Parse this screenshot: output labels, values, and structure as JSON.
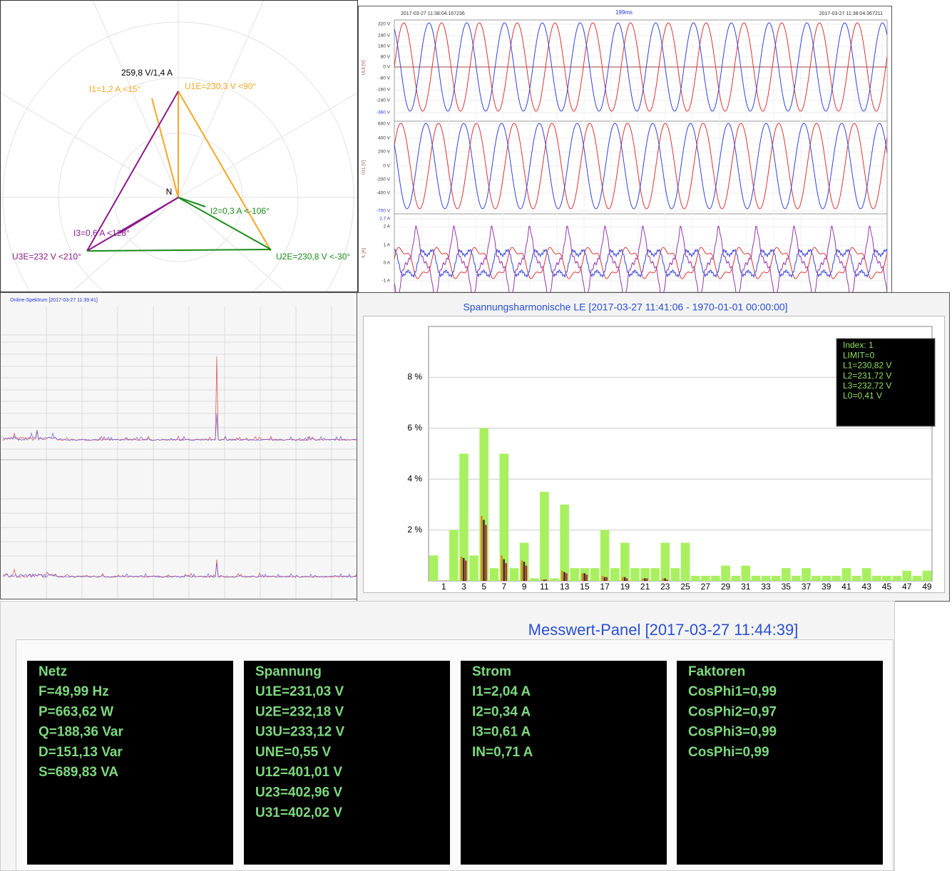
{
  "phasor": {
    "labels": [
      "259,8 V/1,4 A",
      "I1=1,2 A  <15°",
      "U1E=230,3 V <90°",
      "N",
      "I2=0,3 A  <-106°",
      "I3=0,6 A  <128°",
      "U3E=232 V <210°",
      "U2E=230,8 V <-30°"
    ]
  },
  "waveform": {
    "start": "2017-03-27 11:38:04.167236",
    "duration": "199ms",
    "end": "2017-03-27 11:38:04.367211",
    "axes": [
      {
        "label": "ULE [V]",
        "ticks": [
          "320 V",
          "240 V",
          "160 V",
          "80 V",
          "0 V",
          "-80 V",
          "-160 V",
          "-240 V",
          "-360 V"
        ]
      },
      {
        "label": "ULL [V]",
        "ticks": [
          "600 V",
          "400 V",
          "200 V",
          "0 V",
          "-200 V",
          "-400 V",
          "-700 V"
        ]
      },
      {
        "label": "IL [A]",
        "ticks": [
          "2,7 A",
          "2 A",
          "1 A",
          "0 A",
          "-1 A"
        ]
      }
    ]
  },
  "spectrum": {
    "title": "Online-Spektrum [2017-03-27 11:39:41]"
  },
  "chart_data": {
    "type": "bar",
    "title": "Spannungsharmonische LE [2017-03-27 11:41:06 - 1970-01-01 00:00:00]",
    "categories": [
      null,
      "1",
      null,
      "3",
      null,
      "5",
      null,
      "7",
      null,
      "9",
      null,
      "11",
      null,
      "13",
      null,
      "15",
      null,
      "17",
      null,
      "19",
      null,
      "21",
      null,
      "23",
      null,
      "25",
      null,
      "27",
      null,
      "29",
      null,
      "31",
      null,
      "33",
      null,
      "35",
      null,
      "37",
      null,
      "39",
      null,
      "41",
      null,
      "43",
      null,
      "45",
      null,
      "47",
      null,
      "49"
    ],
    "series": [
      {
        "color": "#a8f060",
        "values": [
          1.0,
          0,
          2.0,
          5.0,
          1.0,
          6.0,
          0.5,
          5.0,
          0.5,
          1.5,
          0.1,
          3.5,
          0.1,
          3.0,
          0.5,
          0.5,
          0.5,
          2.0,
          0.5,
          1.5,
          0.5,
          0.5,
          0.5,
          1.5,
          0.5,
          1.5,
          0.2,
          0.2,
          0.2,
          0.6,
          0.2,
          0.6,
          0.2,
          0.2,
          0.2,
          0.5,
          0.2,
          0.5,
          0.2,
          0.2,
          0.2,
          0.5,
          0.2,
          0.5,
          0.2,
          0.2,
          0.2,
          0.4,
          0.2,
          0.4
        ]
      },
      {
        "color": "#e08a10",
        "values": [
          0,
          0,
          0,
          0.95,
          0,
          2.55,
          0,
          1.0,
          0,
          0.8,
          0,
          0.05,
          0,
          0.4,
          0,
          0.3,
          0,
          0.2,
          0,
          0.15,
          0,
          0.1,
          0,
          0.1,
          0,
          0,
          0,
          0,
          0,
          0,
          0,
          0,
          0,
          0,
          0,
          0,
          0,
          0,
          0,
          0,
          0,
          0,
          0,
          0,
          0,
          0,
          0,
          0,
          0,
          0
        ]
      },
      {
        "color": "#303040",
        "values": [
          0,
          0,
          0,
          0.9,
          0,
          2.4,
          0,
          0.85,
          0,
          0.75,
          0,
          0.05,
          0,
          0.35,
          0,
          0.3,
          0,
          0.15,
          0,
          0.15,
          0,
          0.1,
          0,
          0.1,
          0,
          0,
          0,
          0,
          0,
          0,
          0,
          0,
          0,
          0,
          0,
          0,
          0,
          0,
          0,
          0,
          0,
          0,
          0,
          0,
          0,
          0,
          0,
          0,
          0,
          0
        ]
      },
      {
        "color": "#c03030",
        "values": [
          0,
          0,
          0,
          0.8,
          0,
          2.2,
          0,
          0.7,
          0,
          0.6,
          0,
          0.05,
          0,
          0.3,
          0,
          0.25,
          0,
          0.15,
          0,
          0.1,
          0,
          0.1,
          0,
          0.05,
          0,
          0,
          0,
          0,
          0,
          0,
          0,
          0,
          0,
          0,
          0,
          0,
          0,
          0,
          0,
          0,
          0,
          0,
          0,
          0,
          0,
          0,
          0,
          0,
          0,
          0
        ]
      }
    ],
    "ylim": [
      0,
      10
    ],
    "yticks": [
      {
        "value": 2,
        "label": "2 %"
      },
      {
        "value": 4,
        "label": "4 %"
      },
      {
        "value": 6,
        "label": "6 %"
      },
      {
        "value": 8,
        "label": "8 %"
      }
    ],
    "grid": true,
    "annotations": [
      "Index: 1",
      "LIMIT=0",
      "L1=230,82 V",
      "L2=231,72 V",
      "L3=232,72 V",
      "L0=0,41 V"
    ]
  },
  "panel": {
    "title": "Messwert-Panel [2017-03-27 11:44:39]",
    "boxes": [
      {
        "heading": "Netz",
        "lines": [
          "F=49,99 Hz",
          "P=663,62 W",
          "Q=188,36 Var",
          "D=151,13 Var",
          "S=689,83 VA"
        ]
      },
      {
        "heading": "Spannung",
        "lines": [
          "U1E=231,03 V",
          "U2E=232,18 V",
          "U3U=233,12 V",
          "UNE=0,55 V",
          "U12=401,01 V",
          "U23=402,96 V",
          "U31=402,02 V"
        ]
      },
      {
        "heading": "Strom",
        "lines": [
          "I1=2,04 A",
          "I2=0,34 A",
          "I3=0,61 A",
          "IN=0,71 A"
        ]
      },
      {
        "heading": "Faktoren",
        "lines": [
          "CosPhi1=0,99",
          "CosPhi2=0,97",
          "CosPhi3=0,99",
          "CosPhi=0,99"
        ]
      }
    ]
  }
}
